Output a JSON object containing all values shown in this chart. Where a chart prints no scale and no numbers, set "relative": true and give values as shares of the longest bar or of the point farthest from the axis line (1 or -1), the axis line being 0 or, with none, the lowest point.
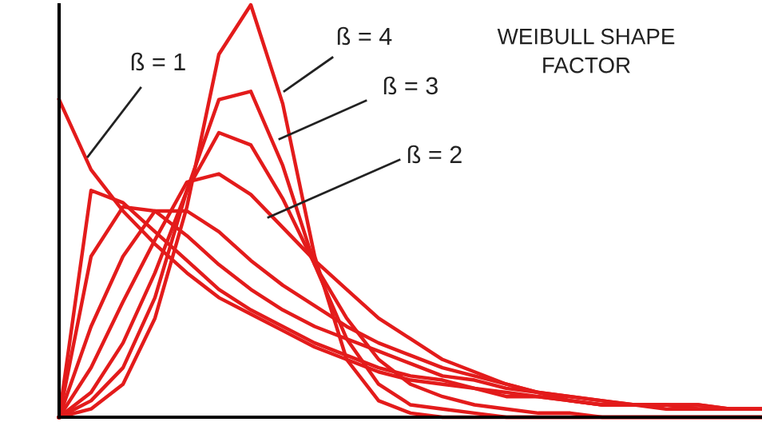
{
  "chart_data": {
    "type": "line",
    "title": "WEIBULL SHAPE\nFACTOR",
    "relative": true,
    "tick_labels": false,
    "marker": "none",
    "line_style": "solid",
    "categories": [
      null,
      null,
      null,
      null,
      null,
      null,
      null,
      null,
      null,
      null,
      null,
      null,
      null,
      null,
      null,
      null,
      null,
      null,
      null,
      null,
      null,
      null,
      null
    ],
    "annotations": [
      "ß = 1",
      "ß = 4",
      "ß = 3",
      "ß = 2"
    ],
    "series": [
      {
        "color": "#e31b1b",
        "values": [
          0.77,
          0.6,
          0.5,
          0.42,
          0.35,
          0.29,
          0.25,
          0.21,
          0.17,
          0.14,
          0.11,
          0.09,
          0.08,
          0.07,
          0.05,
          0.05,
          0.04,
          0.03,
          0.03,
          0.03,
          0.02,
          0.02,
          0.02
        ]
      },
      {
        "color": "#e31b1b",
        "values": [
          0,
          0.55,
          0.52,
          0.45,
          0.38,
          0.31,
          0.26,
          0.22,
          0.18,
          0.15,
          0.12,
          0.1,
          0.09,
          0.07,
          0.06,
          0.05,
          0.04,
          0.03,
          0.03,
          0.03,
          0.02,
          0.02,
          0.02
        ]
      },
      {
        "color": "#e31b1b",
        "values": [
          0,
          0.39,
          0.51,
          0.5,
          0.44,
          0.37,
          0.31,
          0.26,
          0.22,
          0.19,
          0.16,
          0.13,
          0.1,
          0.09,
          0.07,
          0.06,
          0.05,
          0.04,
          0.03,
          0.03,
          0.03,
          0.02,
          0.02
        ]
      },
      {
        "color": "#e31b1b",
        "values": [
          0,
          0.22,
          0.39,
          0.5,
          0.5,
          0.45,
          0.38,
          0.32,
          0.27,
          0.22,
          0.18,
          0.15,
          0.12,
          0.1,
          0.08,
          0.06,
          0.05,
          0.04,
          0.03,
          0.03,
          0.03,
          0.02,
          0.02
        ]
      },
      {
        "color": "#e31b1b",
        "values": [
          0,
          0.12,
          0.28,
          0.43,
          0.57,
          0.59,
          0.54,
          0.46,
          0.38,
          0.31,
          0.24,
          0.19,
          0.14,
          0.11,
          0.08,
          0.06,
          0.04,
          0.03,
          0.03,
          0.02,
          0.02,
          0.02,
          0.02
        ]
      },
      {
        "color": "#e31b1b",
        "values": [
          0,
          0.06,
          0.18,
          0.35,
          0.55,
          0.69,
          0.66,
          0.53,
          0.37,
          0.24,
          0.14,
          0.08,
          0.05,
          0.03,
          0.02,
          0.01,
          0.01,
          0,
          0,
          0,
          0,
          0,
          0
        ]
      },
      {
        "color": "#e31b1b",
        "values": [
          0,
          0.04,
          0.12,
          0.29,
          0.55,
          0.77,
          0.79,
          0.61,
          0.37,
          0.19,
          0.08,
          0.03,
          0.02,
          0.01,
          0,
          0,
          0,
          0,
          0,
          0,
          0,
          0,
          0
        ]
      },
      {
        "color": "#e31b1b",
        "values": [
          0,
          0.02,
          0.08,
          0.24,
          0.51,
          0.88,
          1.0,
          0.76,
          0.39,
          0.14,
          0.04,
          0.01,
          0,
          0,
          0,
          0,
          0,
          0,
          0,
          0,
          0,
          0,
          0
        ]
      }
    ]
  }
}
